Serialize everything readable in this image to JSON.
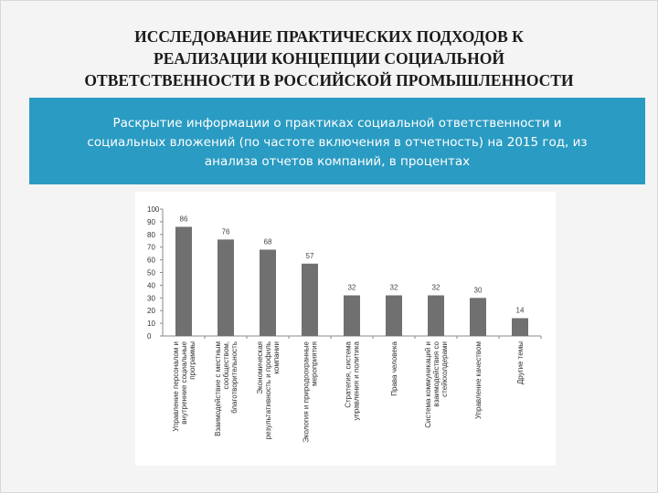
{
  "title_lines": [
    "ИССЛЕДОВАНИЕ ПРАКТИЧЕСКИХ ПОДХОДОВ К",
    "РЕАЛИЗАЦИИ КОНЦЕПЦИИ СОЦИАЛЬНОЙ",
    "ОТВЕТСТВЕННОСТИ В РОССИЙСКОЙ  ПРОМЫШЛЕННОСТИ"
  ],
  "banner_lines": [
    "Раскрытие информации о практиках социальной ответственности и",
    "социальных вложений (по частоте включения в отчетность) на 2015 год, из",
    "анализа отчетов компаний, в процентах"
  ],
  "colors": {
    "banner": "#2a9bc2",
    "bar": "#707070"
  },
  "chart_data": {
    "type": "bar",
    "ylim": [
      0,
      100
    ],
    "yticks": [
      0,
      10,
      20,
      30,
      40,
      50,
      60,
      70,
      80,
      90,
      100
    ],
    "grid": false,
    "categories": [
      [
        "Управление персоналом и",
        "внутренние социальные",
        "программы"
      ],
      [
        "Взаимодействие с местным",
        "сообществом,",
        "благотворительность"
      ],
      [
        "Экономическая",
        "результативность и профиль",
        "компании"
      ],
      [
        "Экология и природоохранные",
        "мероприятия"
      ],
      [
        "Стратегия, система",
        "управления и политика"
      ],
      [
        "Права человека"
      ],
      [
        "Система коммуникаций и",
        "взаимодействия со",
        "стейкхолдерами"
      ],
      [
        "Управление качеством"
      ],
      [
        "Другие темы"
      ]
    ],
    "values": [
      86,
      76,
      68,
      57,
      32,
      32,
      32,
      30,
      14
    ]
  }
}
